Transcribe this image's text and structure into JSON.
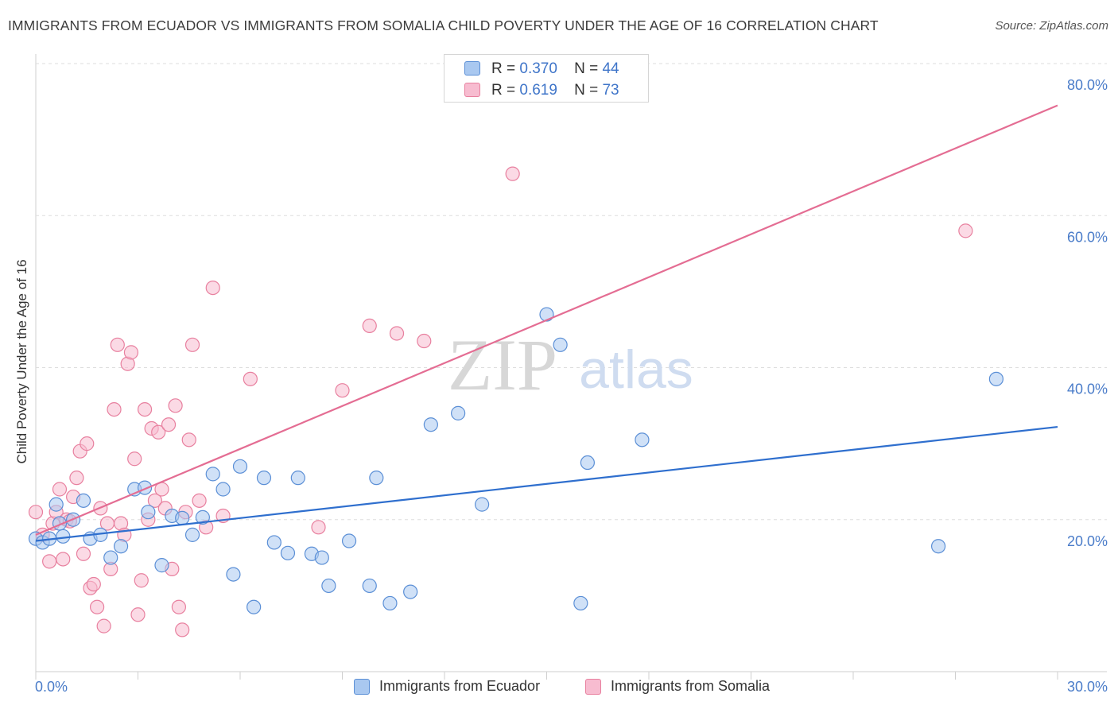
{
  "title": "IMMIGRANTS FROM ECUADOR VS IMMIGRANTS FROM SOMALIA CHILD POVERTY UNDER THE AGE OF 16 CORRELATION CHART",
  "source": "Source: ZipAtlas.com",
  "watermark": {
    "zip": "ZIP",
    "atlas": "atlas"
  },
  "legend_top": [
    {
      "r_label": "R =",
      "r_value": "0.370",
      "n_label": "N =",
      "n_value": "44"
    },
    {
      "r_label": "R =",
      "r_value": "0.619",
      "n_label": "N =",
      "n_value": "73"
    }
  ],
  "colors": {
    "ecuador_fill": "#a9c8f0",
    "ecuador_stroke": "#5b8fd6",
    "ecuador_line": "#2f6fce",
    "somalia_fill": "#f7bcd0",
    "somalia_stroke": "#e8809f",
    "somalia_line": "#e46d93",
    "tick_text": "#4a7cc9",
    "grid": "#dddddd"
  },
  "chart_data": {
    "type": "scatter",
    "title": "IMMIGRANTS FROM ECUADOR VS IMMIGRANTS FROM SOMALIA CHILD POVERTY UNDER THE AGE OF 16 CORRELATION CHART",
    "xlabel": "",
    "ylabel": "Child Poverty Under the Age of 16",
    "xlim": [
      0,
      30
    ],
    "ylim": [
      0,
      80
    ],
    "x_ticks": [
      "0.0%",
      "30.0%"
    ],
    "y_ticks": [
      {
        "value": 20,
        "label": "20.0%"
      },
      {
        "value": 40,
        "label": "40.0%"
      },
      {
        "value": 60,
        "label": "60.0%"
      },
      {
        "value": 80,
        "label": "80.0%"
      }
    ],
    "grid": true,
    "legend_position": "bottom",
    "series": [
      {
        "name": "Immigrants from Ecuador",
        "color": "#5b8fd6",
        "r": 0.37,
        "n": 44,
        "trend": {
          "x": [
            0,
            30
          ],
          "y": [
            17.2,
            32.2
          ]
        },
        "points": [
          [
            0.0,
            17.5
          ],
          [
            0.2,
            17.0
          ],
          [
            0.4,
            17.5
          ],
          [
            0.6,
            22.0
          ],
          [
            0.7,
            19.5
          ],
          [
            0.8,
            17.8
          ],
          [
            1.1,
            20.0
          ],
          [
            1.4,
            22.5
          ],
          [
            1.6,
            17.5
          ],
          [
            1.9,
            18.0
          ],
          [
            2.2,
            15.0
          ],
          [
            2.5,
            16.5
          ],
          [
            2.9,
            24.0
          ],
          [
            3.2,
            24.2
          ],
          [
            3.3,
            21.0
          ],
          [
            3.7,
            14.0
          ],
          [
            4.0,
            20.5
          ],
          [
            4.3,
            20.2
          ],
          [
            4.6,
            18.0
          ],
          [
            4.9,
            20.3
          ],
          [
            5.2,
            26.0
          ],
          [
            5.5,
            24.0
          ],
          [
            5.8,
            12.8
          ],
          [
            6.0,
            27.0
          ],
          [
            6.4,
            8.5
          ],
          [
            6.7,
            25.5
          ],
          [
            7.0,
            17.0
          ],
          [
            7.4,
            15.6
          ],
          [
            7.7,
            25.5
          ],
          [
            8.1,
            15.5
          ],
          [
            8.4,
            15.0
          ],
          [
            8.6,
            11.3
          ],
          [
            9.2,
            17.2
          ],
          [
            9.8,
            11.3
          ],
          [
            10.0,
            25.5
          ],
          [
            10.4,
            9.0
          ],
          [
            11.0,
            10.5
          ],
          [
            11.6,
            32.5
          ],
          [
            12.4,
            34.0
          ],
          [
            13.1,
            22.0
          ],
          [
            15.0,
            47.0
          ],
          [
            15.4,
            43.0
          ],
          [
            16.0,
            9.0
          ],
          [
            16.2,
            27.5
          ],
          [
            17.8,
            30.5
          ],
          [
            26.5,
            16.5
          ],
          [
            28.2,
            38.5
          ]
        ]
      },
      {
        "name": "Immigrants from Somalia",
        "color": "#e8809f",
        "r": 0.619,
        "n": 73,
        "trend": {
          "x": [
            0,
            30
          ],
          "y": [
            18.0,
            74.5
          ]
        },
        "points": [
          [
            0.0,
            21.0
          ],
          [
            0.2,
            18.0
          ],
          [
            0.4,
            14.5
          ],
          [
            0.5,
            19.5
          ],
          [
            0.6,
            21.0
          ],
          [
            0.7,
            24.0
          ],
          [
            0.8,
            14.8
          ],
          [
            0.9,
            20.0
          ],
          [
            1.0,
            19.8
          ],
          [
            1.1,
            23.0
          ],
          [
            1.2,
            25.5
          ],
          [
            1.3,
            29.0
          ],
          [
            1.4,
            15.5
          ],
          [
            1.5,
            30.0
          ],
          [
            1.6,
            11.0
          ],
          [
            1.7,
            11.5
          ],
          [
            1.8,
            8.5
          ],
          [
            1.9,
            21.5
          ],
          [
            2.0,
            6.0
          ],
          [
            2.1,
            19.5
          ],
          [
            2.2,
            13.5
          ],
          [
            2.3,
            34.5
          ],
          [
            2.4,
            43.0
          ],
          [
            2.5,
            19.5
          ],
          [
            2.6,
            18.0
          ],
          [
            2.7,
            40.5
          ],
          [
            2.8,
            42.0
          ],
          [
            2.9,
            28.0
          ],
          [
            3.0,
            7.5
          ],
          [
            3.1,
            12.0
          ],
          [
            3.2,
            34.5
          ],
          [
            3.3,
            20.0
          ],
          [
            3.4,
            32.0
          ],
          [
            3.5,
            22.5
          ],
          [
            3.6,
            31.5
          ],
          [
            3.7,
            24.0
          ],
          [
            3.8,
            21.5
          ],
          [
            3.9,
            32.5
          ],
          [
            4.0,
            13.5
          ],
          [
            4.1,
            35.0
          ],
          [
            4.2,
            8.5
          ],
          [
            4.3,
            5.5
          ],
          [
            4.4,
            21.0
          ],
          [
            4.5,
            30.5
          ],
          [
            4.6,
            43.0
          ],
          [
            4.8,
            22.5
          ],
          [
            5.0,
            19.0
          ],
          [
            5.2,
            50.5
          ],
          [
            5.5,
            20.5
          ],
          [
            6.3,
            38.5
          ],
          [
            8.3,
            19.0
          ],
          [
            9.0,
            37.0
          ],
          [
            9.8,
            45.5
          ],
          [
            10.6,
            44.5
          ],
          [
            11.4,
            43.5
          ],
          [
            14.0,
            65.5
          ],
          [
            27.3,
            58.0
          ]
        ]
      }
    ]
  },
  "legend_bottom": [
    "Immigrants from Ecuador",
    "Immigrants from Somalia"
  ]
}
